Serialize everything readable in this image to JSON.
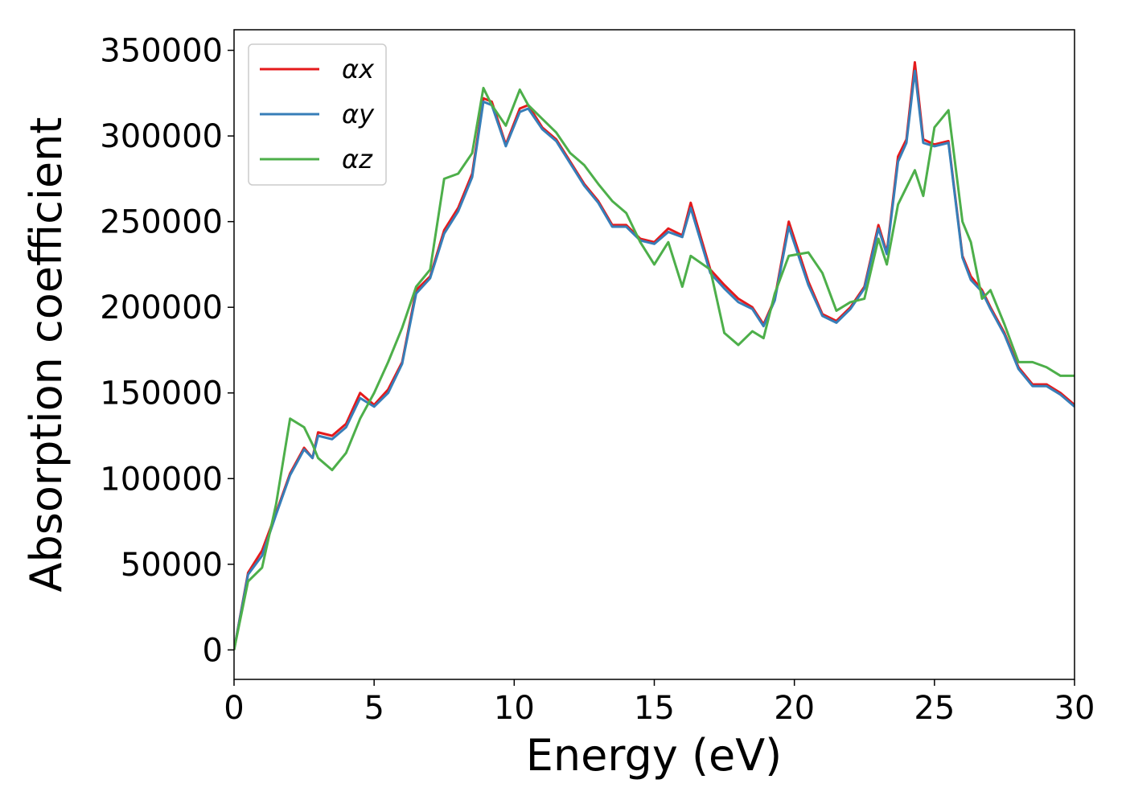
{
  "chart_data": {
    "type": "line",
    "xlabel": "Energy (eV)",
    "ylabel": "Absorption coefficient",
    "x": [
      0,
      0.5,
      1,
      1.5,
      2,
      2.5,
      2.8,
      3,
      3.5,
      4,
      4.5,
      5,
      5.5,
      6,
      6.5,
      7,
      7.5,
      8,
      8.5,
      8.9,
      9.2,
      9.7,
      10.2,
      10.5,
      11,
      11.5,
      12,
      12.5,
      13,
      13.5,
      14,
      14.5,
      15,
      15.5,
      16,
      16.3,
      17,
      17.5,
      18,
      18.5,
      18.9,
      19.3,
      19.8,
      20.5,
      21,
      21.5,
      22,
      22.5,
      23,
      23.3,
      23.7,
      24,
      24.3,
      24.6,
      25,
      25.5,
      26,
      26.3,
      26.7,
      27,
      27.5,
      28,
      28.5,
      29,
      29.5,
      30
    ],
    "series": [
      {
        "name": "αx",
        "color": "#e41a1c",
        "values": [
          0,
          45000,
          58000,
          80000,
          103000,
          118000,
          112000,
          127000,
          125000,
          132000,
          150000,
          143000,
          152000,
          168000,
          210000,
          218000,
          245000,
          258000,
          278000,
          322000,
          320000,
          295000,
          316000,
          318000,
          305000,
          298000,
          285000,
          272000,
          262000,
          248000,
          248000,
          240000,
          238000,
          246000,
          242000,
          261000,
          222000,
          213000,
          205000,
          200000,
          190000,
          205000,
          250000,
          215000,
          196000,
          192000,
          200000,
          212000,
          248000,
          232000,
          288000,
          298000,
          343000,
          298000,
          295000,
          297000,
          230000,
          218000,
          210000,
          200000,
          185000,
          165000,
          155000,
          155000,
          150000,
          143000
        ]
      },
      {
        "name": "αy",
        "color": "#377eb8",
        "values": [
          0,
          44000,
          55000,
          79000,
          102000,
          117000,
          112000,
          125000,
          123000,
          130000,
          147000,
          142000,
          150000,
          167000,
          208000,
          217000,
          243000,
          256000,
          276000,
          320000,
          318000,
          294000,
          314000,
          316000,
          304000,
          297000,
          284000,
          271000,
          261000,
          247000,
          247000,
          239000,
          237000,
          244000,
          241000,
          258000,
          220000,
          211000,
          203000,
          199000,
          189000,
          204000,
          247000,
          213000,
          195000,
          191000,
          199000,
          211000,
          246000,
          231000,
          285000,
          296000,
          338000,
          296000,
          294000,
          296000,
          229000,
          216000,
          209000,
          199000,
          184000,
          164000,
          154000,
          154000,
          149000,
          142000
        ]
      },
      {
        "name": "αz",
        "color": "#4daf4a",
        "values": [
          0,
          40000,
          48000,
          85000,
          135000,
          130000,
          120000,
          112000,
          105000,
          115000,
          135000,
          150000,
          168000,
          188000,
          212000,
          222000,
          275000,
          278000,
          290000,
          328000,
          318000,
          306000,
          327000,
          318000,
          310000,
          302000,
          290000,
          283000,
          272000,
          262000,
          255000,
          238000,
          225000,
          238000,
          212000,
          230000,
          222000,
          185000,
          178000,
          186000,
          182000,
          208000,
          230000,
          232000,
          220000,
          198000,
          203000,
          205000,
          240000,
          225000,
          260000,
          270000,
          280000,
          265000,
          305000,
          315000,
          250000,
          238000,
          205000,
          210000,
          190000,
          168000,
          168000,
          165000,
          160000,
          160000
        ]
      }
    ],
    "xlim": [
      0,
      30
    ],
    "xticks": [
      0,
      5,
      10,
      15,
      20,
      25,
      30
    ],
    "ylim": [
      -17200,
      362000
    ],
    "yticks": [
      0,
      50000,
      100000,
      150000,
      200000,
      250000,
      300000,
      350000
    ],
    "legend": "upper left"
  }
}
